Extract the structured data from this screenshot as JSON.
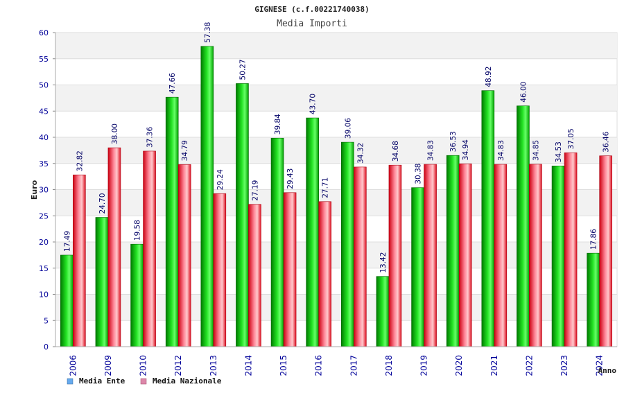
{
  "chart_data": {
    "type": "bar",
    "title": "GIGNESE (c.f.00221740038)",
    "subtitle": "Media Importi",
    "xlabel": "Anno",
    "ylabel": "Euro",
    "ylim": [
      0,
      60
    ],
    "yticks": [
      0,
      5,
      10,
      15,
      20,
      25,
      30,
      35,
      40,
      45,
      50,
      55,
      60
    ],
    "grid": true,
    "legend_position": "bottom-left",
    "categories": [
      "2006",
      "2009",
      "2010",
      "2012",
      "2013",
      "2014",
      "2015",
      "2016",
      "2017",
      "2018",
      "2019",
      "2020",
      "2021",
      "2022",
      "2023",
      "2024"
    ],
    "series": [
      {
        "name": "Media Ente",
        "color": "#00cc00",
        "legend_color": "#66aaee",
        "values": [
          17.49,
          24.7,
          19.58,
          47.66,
          57.38,
          50.27,
          39.84,
          43.7,
          39.06,
          13.42,
          30.38,
          36.53,
          48.92,
          46.0,
          34.53,
          17.86
        ],
        "labels": [
          "17.49",
          "24.70",
          "19.58",
          "47.66",
          "57.38",
          "50.27",
          "39.84",
          "43.70",
          "39.06",
          "13.42",
          "30.38",
          "36.53",
          "48.92",
          "46.00",
          "34.53",
          "17.86"
        ]
      },
      {
        "name": "Media Nazionale",
        "color": "#ee2233",
        "legend_color": "#dd88aa",
        "values": [
          32.82,
          38.0,
          37.36,
          34.79,
          29.24,
          27.19,
          29.43,
          27.71,
          34.32,
          34.68,
          34.83,
          34.94,
          34.83,
          34.85,
          37.05,
          36.46
        ],
        "labels": [
          "32.82",
          "38.00",
          "37.36",
          "34.79",
          "29.24",
          "27.19",
          "29.43",
          "27.71",
          "34.32",
          "34.68",
          "34.83",
          "34.94",
          "34.83",
          "34.85",
          "37.05",
          "36.46"
        ]
      }
    ]
  },
  "colors": {
    "axis_text": "#000099",
    "label_text": "#000066",
    "band": "#f2f2f2",
    "gridline": "#dddddd"
  }
}
